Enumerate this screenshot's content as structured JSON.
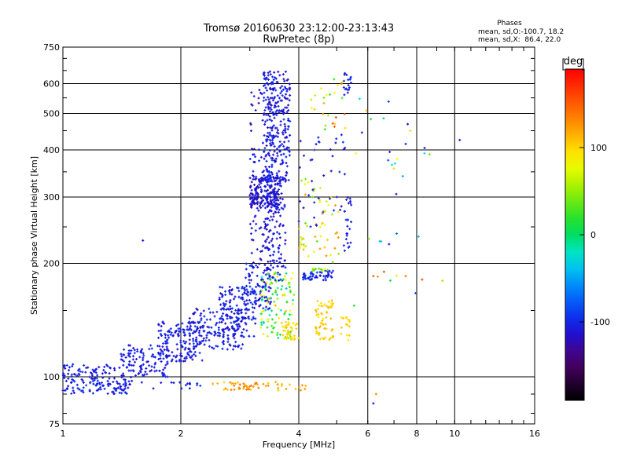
{
  "chart_data": {
    "type": "scatter",
    "title": "Tromsø 20160630 23:12:00-23:13:43",
    "subtitle": "RwPretec (8p)",
    "phases": {
      "heading": "Phases",
      "line_o": "mean, sd,O:-100.7, 18.2",
      "line_x": "mean, sd,X:  86.4, 22.0"
    },
    "xlabel": "Frequency [MHz]",
    "ylabel": "Stationary phase Virtual Height [km]",
    "xscale": "log",
    "yscale": "log",
    "xlim": [
      1,
      16
    ],
    "ylim": [
      75,
      750
    ],
    "xticks": [
      {
        "v": 1,
        "label": "1"
      },
      {
        "v": 2,
        "label": "2"
      },
      {
        "v": 4,
        "label": "4"
      },
      {
        "v": 6,
        "label": "6"
      },
      {
        "v": 8,
        "label": "8"
      },
      {
        "v": 10,
        "label": "10"
      },
      {
        "v": 16,
        "label": "16"
      }
    ],
    "yticks": [
      {
        "v": 75,
        "label": "75"
      },
      {
        "v": 100,
        "label": "100"
      },
      {
        "v": 200,
        "label": "200"
      },
      {
        "v": 300,
        "label": "300"
      },
      {
        "v": 400,
        "label": "400"
      },
      {
        "v": 500,
        "label": "500"
      },
      {
        "v": 600,
        "label": "600"
      },
      {
        "v": 750,
        "label": "750"
      }
    ],
    "grid": true,
    "colorbar": {
      "label": "deg",
      "min": -190,
      "max": 190,
      "ticks": [
        {
          "v": 100,
          "label": "100"
        },
        {
          "v": 0,
          "label": "0"
        },
        {
          "v": -100,
          "label": "-100"
        }
      ]
    },
    "clusters": [
      {
        "f0": 1.0,
        "f1": 1.5,
        "h0": 90,
        "h1": 108,
        "n": 170,
        "p0": -120,
        "p1": -90
      },
      {
        "f0": 1.4,
        "f1": 1.85,
        "h0": 100,
        "h1": 122,
        "n": 110,
        "p0": -120,
        "p1": -90
      },
      {
        "f0": 1.75,
        "f1": 2.3,
        "h0": 110,
        "h1": 140,
        "n": 150,
        "p0": -120,
        "p1": -90
      },
      {
        "f0": 2.1,
        "f1": 2.9,
        "h0": 118,
        "h1": 152,
        "n": 150,
        "p0": -120,
        "p1": -90
      },
      {
        "f0": 2.5,
        "f1": 3.1,
        "h0": 128,
        "h1": 175,
        "n": 130,
        "p0": -120,
        "p1": -90
      },
      {
        "f0": 2.9,
        "f1": 3.4,
        "h0": 150,
        "h1": 200,
        "n": 90,
        "p0": -120,
        "p1": -90
      },
      {
        "f0": 3.0,
        "f1": 3.45,
        "h0": 200,
        "h1": 580,
        "n": 120,
        "p0": -130,
        "p1": -95
      },
      {
        "f0": 3.0,
        "f1": 3.6,
        "h0": 280,
        "h1": 340,
        "n": 170,
        "p0": -130,
        "p1": -95
      },
      {
        "f0": 3.25,
        "f1": 3.8,
        "h0": 330,
        "h1": 650,
        "n": 280,
        "p0": -125,
        "p1": -90
      },
      {
        "f0": 3.3,
        "f1": 3.7,
        "h0": 180,
        "h1": 330,
        "n": 110,
        "p0": -125,
        "p1": -95
      },
      {
        "f0": 3.2,
        "f1": 3.9,
        "h0": 125,
        "h1": 190,
        "n": 110,
        "p0": -40,
        "p1": 110
      },
      {
        "f0": 3.6,
        "f1": 4.0,
        "h0": 125,
        "h1": 140,
        "n": 40,
        "p0": 80,
        "p1": 110
      },
      {
        "f0": 4.1,
        "f1": 4.9,
        "h0": 180,
        "h1": 192,
        "n": 50,
        "p0": -110,
        "p1": -90
      },
      {
        "f0": 4.3,
        "f1": 4.9,
        "h0": 190,
        "h1": 194,
        "n": 12,
        "p0": 20,
        "p1": 80
      },
      {
        "f0": 4.4,
        "f1": 4.9,
        "h0": 125,
        "h1": 160,
        "n": 60,
        "p0": 90,
        "p1": 115
      },
      {
        "f0": 4.0,
        "f1": 5.1,
        "h0": 200,
        "h1": 340,
        "n": 55,
        "p0": 30,
        "p1": 130
      },
      {
        "f0": 4.0,
        "f1": 5.3,
        "h0": 250,
        "h1": 450,
        "n": 40,
        "p0": -120,
        "p1": -90
      },
      {
        "f0": 4.3,
        "f1": 5.3,
        "h0": 450,
        "h1": 620,
        "n": 25,
        "p0": 20,
        "p1": 160
      },
      {
        "f0": 5.2,
        "f1": 5.45,
        "h0": 215,
        "h1": 300,
        "n": 25,
        "p0": -120,
        "p1": -90
      },
      {
        "f0": 5.2,
        "f1": 5.45,
        "h0": 560,
        "h1": 640,
        "n": 18,
        "p0": -120,
        "p1": -90
      },
      {
        "f0": 5.1,
        "f1": 5.4,
        "h0": 125,
        "h1": 145,
        "n": 15,
        "p0": 90,
        "p1": 110
      },
      {
        "f0": 2.4,
        "f1": 3.4,
        "h0": 92,
        "h1": 97,
        "n": 40,
        "p0": 100,
        "p1": 150
      },
      {
        "f0": 3.4,
        "f1": 4.2,
        "h0": 92,
        "h1": 97,
        "n": 15,
        "p0": 100,
        "p1": 130
      },
      {
        "f0": 1.55,
        "f1": 2.25,
        "h0": 93,
        "h1": 97,
        "n": 15,
        "p0": -115,
        "p1": -90
      },
      {
        "f0": 5.5,
        "f1": 9.5,
        "h0": 150,
        "h1": 620,
        "n": 30,
        "p0": -120,
        "p1": 160
      }
    ],
    "points": [
      [
        1.6,
        230,
        -105
      ],
      [
        6.2,
        85,
        -110
      ],
      [
        10.3,
        425,
        -110
      ],
      [
        6.3,
        90,
        130
      ],
      [
        5.8,
        445,
        -100
      ],
      [
        7.7,
        450,
        100
      ],
      [
        7.5,
        415,
        -100
      ],
      [
        6.8,
        225,
        -100
      ],
      [
        6.6,
        190,
        160
      ],
      [
        7.5,
        185,
        140
      ],
      [
        6.2,
        185,
        150
      ]
    ]
  }
}
